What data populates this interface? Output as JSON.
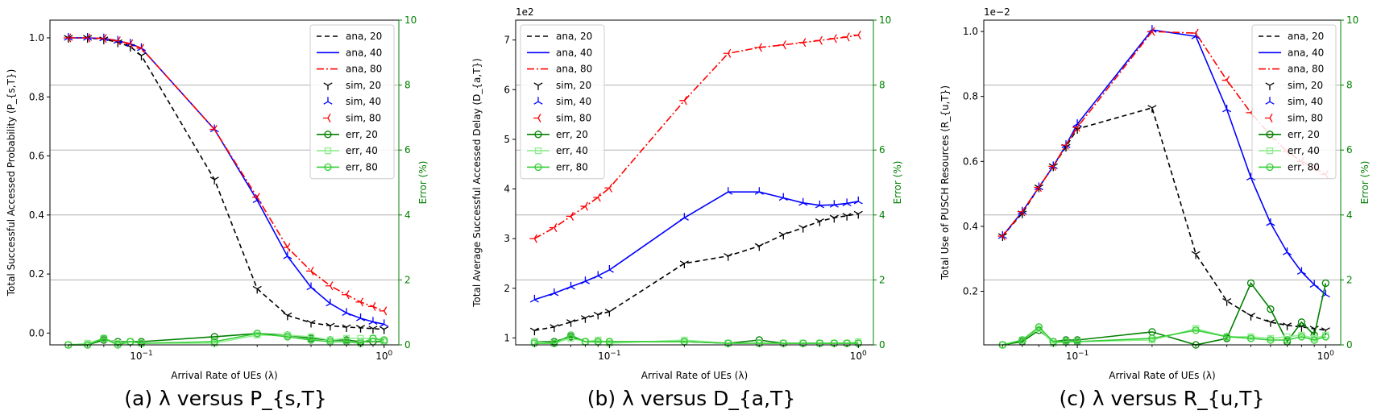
{
  "chart_data": [
    {
      "type": "line",
      "caption": "(a) λ versus P_{s,T}",
      "xlabel": "Arrival Rate of UEs (λ)",
      "ylabel": "Total Successful Accessed Probability (P_{s,T})",
      "y2label": "Error (%)",
      "xscale": "log",
      "xlim": [
        0.042,
        1.15
      ],
      "ylim": [
        -0.04,
        1.06
      ],
      "y2lim": [
        0,
        10
      ],
      "x_ticks": [
        {
          "v": 0.1,
          "base": "10",
          "exp": "−1"
        },
        {
          "v": 1,
          "base": "10",
          "exp": "0"
        }
      ],
      "y_ticks": [
        {
          "v": 0.0,
          "label": "0.0"
        },
        {
          "v": 0.2,
          "label": "0.2"
        },
        {
          "v": 0.4,
          "label": "0.4"
        },
        {
          "v": 0.6,
          "label": "0.6"
        },
        {
          "v": 0.8,
          "label": "0.8"
        },
        {
          "v": 1.0,
          "label": "1.0"
        }
      ],
      "y_multiplier": "",
      "y2_ticks": [
        0,
        2,
        4,
        6,
        8,
        10
      ],
      "grid": "y2 horizontal",
      "legend_position": "upper-right",
      "x": [
        0.05,
        0.06,
        0.07,
        0.08,
        0.09,
        0.1,
        0.2,
        0.3,
        0.4,
        0.5,
        0.6,
        0.7,
        0.8,
        0.9,
        1.0
      ],
      "series": [
        {
          "name": "ana, 20",
          "color": "#000000",
          "style": "dashed",
          "marker": "none",
          "values": [
            1.0,
            1.0,
            0.995,
            0.985,
            0.97,
            0.94,
            0.52,
            0.15,
            0.06,
            0.035,
            0.025,
            0.02,
            0.018,
            0.015,
            0.013
          ]
        },
        {
          "name": "ana, 40",
          "color": "#0000ff",
          "style": "solid",
          "marker": "none",
          "values": [
            1.0,
            1.0,
            0.998,
            0.99,
            0.98,
            0.965,
            0.69,
            0.45,
            0.26,
            0.155,
            0.1,
            0.068,
            0.05,
            0.038,
            0.03
          ]
        },
        {
          "name": "ana, 80",
          "color": "#ff0000",
          "style": "dashdot",
          "marker": "none",
          "values": [
            1.0,
            1.0,
            0.998,
            0.99,
            0.98,
            0.965,
            0.69,
            0.46,
            0.29,
            0.21,
            0.16,
            0.13,
            0.105,
            0.09,
            0.075
          ]
        },
        {
          "name": "sim, 20",
          "color": "#000000",
          "style": "none",
          "marker": "tri_down",
          "values": [
            1.0,
            1.0,
            0.995,
            0.985,
            0.97,
            0.94,
            0.52,
            0.15,
            0.06,
            0.035,
            0.025,
            0.02,
            0.018,
            0.015,
            0.013
          ]
        },
        {
          "name": "sim, 40",
          "color": "#0000ff",
          "style": "none",
          "marker": "tri_up",
          "values": [
            1.0,
            1.0,
            0.998,
            0.99,
            0.98,
            0.965,
            0.69,
            0.45,
            0.26,
            0.155,
            0.1,
            0.068,
            0.05,
            0.038,
            0.03
          ]
        },
        {
          "name": "sim, 80",
          "color": "#ff0000",
          "style": "none",
          "marker": "tri_left",
          "values": [
            1.0,
            1.0,
            0.998,
            0.99,
            0.98,
            0.965,
            0.69,
            0.46,
            0.29,
            0.21,
            0.16,
            0.13,
            0.105,
            0.09,
            0.075
          ]
        },
        {
          "name": "err, 20",
          "color": "#008000",
          "style": "solid",
          "marker": "circle",
          "axis": "right",
          "values": [
            0.0,
            0.0,
            0.15,
            0.1,
            0.1,
            0.1,
            0.25,
            0.35,
            0.3,
            0.2,
            0.15,
            0.15,
            0.1,
            0.1,
            0.1
          ]
        },
        {
          "name": "err, 40",
          "color": "#90ee90",
          "style": "solid",
          "marker": "square",
          "axis": "right",
          "values": [
            0.0,
            0.05,
            0.2,
            0.05,
            0.1,
            0.05,
            0.05,
            0.3,
            0.3,
            0.25,
            0.15,
            0.2,
            0.2,
            0.2,
            0.1
          ]
        },
        {
          "name": "err, 80",
          "color": "#32cd32",
          "style": "solid",
          "marker": "circle",
          "axis": "right",
          "values": [
            0.0,
            0.0,
            0.2,
            0.0,
            0.1,
            0.05,
            0.1,
            0.35,
            0.25,
            0.15,
            0.1,
            0.1,
            0.05,
            0.2,
            0.15
          ]
        }
      ]
    },
    {
      "type": "line",
      "caption": "(b) λ versus D_{a,T}",
      "xlabel": "Arrival Rate of UEs (λ)",
      "ylabel": "Total Average Successful Accessed Delay (D_{a,T})",
      "y2label": "Error (%)",
      "xscale": "log",
      "xlim": [
        0.042,
        1.15
      ],
      "ylim": [
        0.86,
        7.4
      ],
      "y2lim": [
        0,
        10
      ],
      "x_ticks": [
        {
          "v": 0.1,
          "base": "10",
          "exp": "−1"
        },
        {
          "v": 1,
          "base": "10",
          "exp": "0"
        }
      ],
      "y_ticks": [
        {
          "v": 1,
          "label": "1"
        },
        {
          "v": 2,
          "label": "2"
        },
        {
          "v": 3,
          "label": "3"
        },
        {
          "v": 4,
          "label": "4"
        },
        {
          "v": 5,
          "label": "5"
        },
        {
          "v": 6,
          "label": "6"
        },
        {
          "v": 7,
          "label": "7"
        }
      ],
      "y_multiplier": "1e2",
      "y2_ticks": [
        0,
        2,
        4,
        6,
        8,
        10
      ],
      "grid": "y2 horizontal",
      "legend_position": "upper-left",
      "x": [
        0.05,
        0.06,
        0.07,
        0.08,
        0.09,
        0.1,
        0.2,
        0.3,
        0.4,
        0.5,
        0.6,
        0.7,
        0.8,
        0.9,
        1.0
      ],
      "series": [
        {
          "name": "ana, 20",
          "color": "#000000",
          "style": "dashed",
          "marker": "none",
          "values": [
            1.15,
            1.22,
            1.32,
            1.4,
            1.47,
            1.53,
            2.5,
            2.65,
            2.85,
            3.08,
            3.22,
            3.35,
            3.42,
            3.46,
            3.5
          ]
        },
        {
          "name": "ana, 40",
          "color": "#0000ff",
          "style": "solid",
          "marker": "none",
          "values": [
            1.77,
            1.9,
            2.03,
            2.14,
            2.25,
            2.37,
            3.42,
            3.94,
            3.94,
            3.82,
            3.72,
            3.67,
            3.68,
            3.71,
            3.75
          ]
        },
        {
          "name": "ana, 80",
          "color": "#ff0000",
          "style": "dashdot",
          "marker": "none",
          "values": [
            3.0,
            3.22,
            3.45,
            3.65,
            3.83,
            4.02,
            5.78,
            6.73,
            6.85,
            6.9,
            6.95,
            6.99,
            7.03,
            7.06,
            7.1
          ]
        },
        {
          "name": "sim, 20",
          "color": "#000000",
          "style": "none",
          "marker": "tri_down",
          "values": [
            1.15,
            1.22,
            1.32,
            1.4,
            1.47,
            1.53,
            2.5,
            2.65,
            2.85,
            3.08,
            3.22,
            3.35,
            3.42,
            3.46,
            3.5
          ]
        },
        {
          "name": "sim, 40",
          "color": "#0000ff",
          "style": "none",
          "marker": "tri_up",
          "values": [
            1.77,
            1.9,
            2.03,
            2.14,
            2.25,
            2.37,
            3.42,
            3.94,
            3.94,
            3.82,
            3.72,
            3.67,
            3.68,
            3.71,
            3.75
          ]
        },
        {
          "name": "sim, 80",
          "color": "#ff0000",
          "style": "none",
          "marker": "tri_left",
          "values": [
            3.0,
            3.22,
            3.45,
            3.65,
            3.83,
            4.02,
            5.78,
            6.73,
            6.85,
            6.9,
            6.95,
            6.99,
            7.03,
            7.06,
            7.1
          ]
        },
        {
          "name": "err, 20",
          "color": "#008000",
          "style": "solid",
          "marker": "circle",
          "axis": "right",
          "values": [
            0.1,
            0.1,
            0.25,
            0.1,
            0.1,
            0.1,
            0.1,
            0.05,
            0.15,
            0.05,
            0.05,
            0.05,
            0.05,
            0.05,
            0.05
          ]
        },
        {
          "name": "err, 40",
          "color": "#90ee90",
          "style": "solid",
          "marker": "square",
          "axis": "right",
          "values": [
            0.1,
            0.05,
            0.2,
            0.1,
            0.15,
            0.05,
            0.15,
            0.05,
            0.05,
            0.05,
            0.05,
            0.05,
            0.05,
            0.05,
            0.1
          ]
        },
        {
          "name": "err, 80",
          "color": "#32cd32",
          "style": "solid",
          "marker": "circle",
          "axis": "right",
          "values": [
            0.05,
            0.05,
            0.3,
            0.1,
            0.1,
            0.1,
            0.1,
            0.05,
            0.05,
            0.05,
            0.05,
            0.05,
            0.05,
            0.05,
            0.05
          ]
        }
      ]
    },
    {
      "type": "line",
      "caption": "(c) λ versus R_{u,T}",
      "xlabel": "Arrival Rate of UEs (λ)",
      "ylabel": "Total Use of PUSCH Resources (R_{u,T})",
      "y2label": "Error (%)",
      "xscale": "log",
      "xlim": [
        0.042,
        1.15
      ],
      "ylim": [
        0.035,
        1.035
      ],
      "y2lim": [
        0,
        10
      ],
      "x_ticks": [
        {
          "v": 0.1,
          "base": "10",
          "exp": "−1"
        },
        {
          "v": 1,
          "base": "10",
          "exp": "0"
        }
      ],
      "y_ticks": [
        {
          "v": 0.2,
          "label": "0.2"
        },
        {
          "v": 0.4,
          "label": "0.4"
        },
        {
          "v": 0.6,
          "label": "0.6"
        },
        {
          "v": 0.8,
          "label": "0.8"
        },
        {
          "v": 1.0,
          "label": "1.0"
        }
      ],
      "y_multiplier": "1e−2",
      "y2_ticks": [
        0,
        2,
        4,
        6,
        8,
        10
      ],
      "grid": "y2 horizontal",
      "legend_position": "upper-right",
      "x": [
        0.05,
        0.06,
        0.07,
        0.08,
        0.09,
        0.1,
        0.2,
        0.3,
        0.4,
        0.5,
        0.6,
        0.7,
        0.8,
        0.9,
        1.0
      ],
      "series": [
        {
          "name": "ana, 20",
          "color": "#000000",
          "style": "dashed",
          "marker": "none",
          "values": [
            0.37,
            0.44,
            0.52,
            0.585,
            0.645,
            0.7,
            0.765,
            0.315,
            0.17,
            0.125,
            0.105,
            0.095,
            0.09,
            0.085,
            0.08
          ]
        },
        {
          "name": "ana, 40",
          "color": "#0000ff",
          "style": "solid",
          "marker": "none",
          "values": [
            0.37,
            0.445,
            0.52,
            0.585,
            0.65,
            0.715,
            1.005,
            0.985,
            0.76,
            0.55,
            0.41,
            0.32,
            0.26,
            0.22,
            0.19
          ]
        },
        {
          "name": "ana, 80",
          "color": "#ff0000",
          "style": "dashdot",
          "marker": "none",
          "values": [
            0.37,
            0.445,
            0.52,
            0.585,
            0.65,
            0.705,
            1.0,
            0.995,
            0.85,
            0.75,
            0.68,
            0.63,
            0.6,
            0.58,
            0.56
          ]
        },
        {
          "name": "sim, 20",
          "color": "#000000",
          "style": "none",
          "marker": "tri_down",
          "values": [
            0.37,
            0.44,
            0.52,
            0.585,
            0.645,
            0.7,
            0.765,
            0.315,
            0.17,
            0.125,
            0.105,
            0.095,
            0.09,
            0.085,
            0.08
          ]
        },
        {
          "name": "sim, 40",
          "color": "#0000ff",
          "style": "none",
          "marker": "tri_up",
          "values": [
            0.37,
            0.445,
            0.52,
            0.585,
            0.65,
            0.715,
            1.005,
            0.985,
            0.76,
            0.55,
            0.41,
            0.32,
            0.26,
            0.22,
            0.19
          ]
        },
        {
          "name": "sim, 80",
          "color": "#ff0000",
          "style": "none",
          "marker": "tri_left",
          "values": [
            0.37,
            0.445,
            0.52,
            0.585,
            0.65,
            0.705,
            1.0,
            0.995,
            0.85,
            0.75,
            0.68,
            0.63,
            0.6,
            0.58,
            0.56
          ]
        },
        {
          "name": "err, 20",
          "color": "#008000",
          "style": "solid",
          "marker": "circle",
          "axis": "right",
          "values": [
            0.0,
            0.1,
            0.45,
            0.1,
            0.15,
            0.15,
            0.4,
            0.0,
            0.2,
            1.9,
            1.1,
            0.1,
            0.7,
            0.3,
            1.9
          ]
        },
        {
          "name": "err, 40",
          "color": "#90ee90",
          "style": "solid",
          "marker": "square",
          "axis": "right",
          "values": [
            0.0,
            0.15,
            0.5,
            0.05,
            0.1,
            0.1,
            0.15,
            0.5,
            0.25,
            0.25,
            0.2,
            0.25,
            0.3,
            0.2,
            0.3
          ]
        },
        {
          "name": "err, 80",
          "color": "#32cd32",
          "style": "solid",
          "marker": "circle",
          "axis": "right",
          "values": [
            0.0,
            0.15,
            0.55,
            0.1,
            0.1,
            0.1,
            0.2,
            0.45,
            0.25,
            0.2,
            0.15,
            0.15,
            0.25,
            0.15,
            0.25
          ]
        }
      ]
    }
  ]
}
